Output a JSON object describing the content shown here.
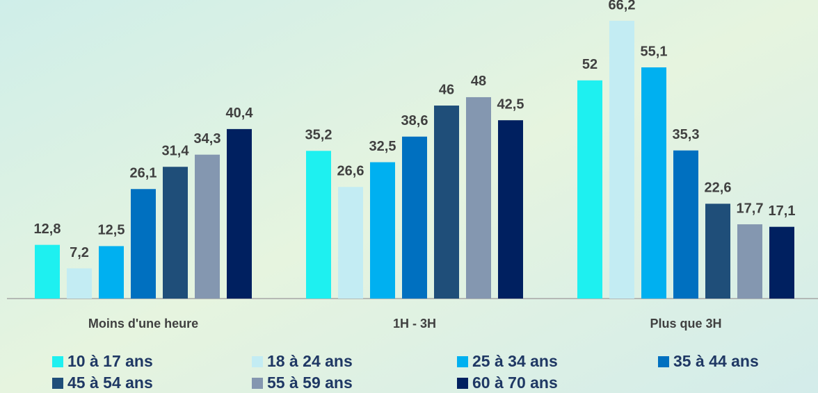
{
  "chart_data": {
    "type": "bar",
    "categories": [
      "Moins d'une heure",
      "1H - 3H",
      "Plus que 3H"
    ],
    "series": [
      {
        "name": "10 à 17 ans",
        "color": "#1ef0f0",
        "values": [
          12.8,
          35.2,
          52
        ],
        "value_labels": [
          "12,8",
          "35,2",
          "52"
        ]
      },
      {
        "name": "18 à 24 ans",
        "color": "#c3ecf3",
        "values": [
          7.2,
          26.6,
          66.2
        ],
        "value_labels": [
          "7,2",
          "26,6",
          "66,2"
        ]
      },
      {
        "name": "25 à 34 ans",
        "color": "#00b0f0",
        "values": [
          12.5,
          32.5,
          55.1
        ],
        "value_labels": [
          "12,5",
          "32,5",
          "55,1"
        ]
      },
      {
        "name": "35 à 44 ans",
        "color": "#0070c0",
        "values": [
          26.1,
          38.6,
          35.3
        ],
        "value_labels": [
          "26,1",
          "38,6",
          "35,3"
        ]
      },
      {
        "name": "45 à 54 ans",
        "color": "#1f4e79",
        "values": [
          31.4,
          46,
          22.6
        ],
        "value_labels": [
          "31,4",
          "46",
          "22,6"
        ]
      },
      {
        "name": "55 à 59 ans",
        "color": "#8497b0",
        "values": [
          34.3,
          48,
          17.7
        ],
        "value_labels": [
          "34,3",
          "48",
          "17,7"
        ]
      },
      {
        "name": "60 à 70 ans",
        "color": "#002060",
        "values": [
          40.4,
          42.5,
          17.1
        ],
        "value_labels": [
          "40,4",
          "42,5",
          "17,1"
        ]
      }
    ],
    "ylim": [
      0,
      70
    ]
  }
}
